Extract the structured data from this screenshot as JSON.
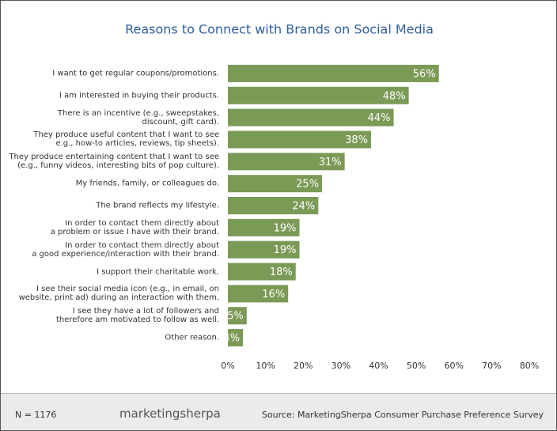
{
  "chart_data": {
    "type": "bar",
    "orientation": "horizontal",
    "title": "Reasons to Connect with Brands on Social Media",
    "categories": [
      "I want to get regular coupons/promotions.",
      "I am interested in buying their products.",
      "There is an incentive (e.g., sweepstakes,\ndiscount, gift card).",
      "They produce useful content that I want to see\ne.g., how-to articles, reviews, tip sheets).",
      "They produce entertaining content that I want to see\n(e.g., funny videos, interesting bits of pop culture).",
      "My friends, family, or colleagues do.",
      "The brand reflects my lifestyle.",
      "In order to contact them directly about\na problem or issue I have with their brand.",
      "In order to contact them directly about\na good experience/interaction with their brand.",
      "I support their charitable work.",
      "I see their social media icon (e.g., in email, on\nwebsite, print ad) during an interaction with them.",
      "I see they have a lot of followers and\ntherefore am motivated to follow as well.",
      "Other reason."
    ],
    "values": [
      56,
      48,
      44,
      38,
      31,
      25,
      24,
      19,
      19,
      18,
      16,
      5,
      4
    ],
    "value_labels": [
      "56%",
      "48%",
      "44%",
      "38%",
      "31%",
      "25%",
      "24%",
      "19%",
      "19%",
      "18%",
      "16%",
      "5%",
      "4%"
    ],
    "color": "#7b9a56",
    "xlim": [
      0,
      80
    ],
    "xticks": [
      {
        "value": 0,
        "label": "0%"
      },
      {
        "value": 10,
        "label": "10%"
      },
      {
        "value": 20,
        "label": "20%"
      },
      {
        "value": 30,
        "label": "30%"
      },
      {
        "value": 40,
        "label": "40%"
      },
      {
        "value": 50,
        "label": "50%"
      },
      {
        "value": 60,
        "label": "60%"
      },
      {
        "value": 70,
        "label": "70%"
      },
      {
        "value": 80,
        "label": "80%"
      }
    ],
    "grid": false
  },
  "footer": {
    "sample": "N = 1176",
    "logo": "marketingsherpa",
    "source": "Source: MarketingSherpa Consumer Purchase Preference Survey"
  }
}
